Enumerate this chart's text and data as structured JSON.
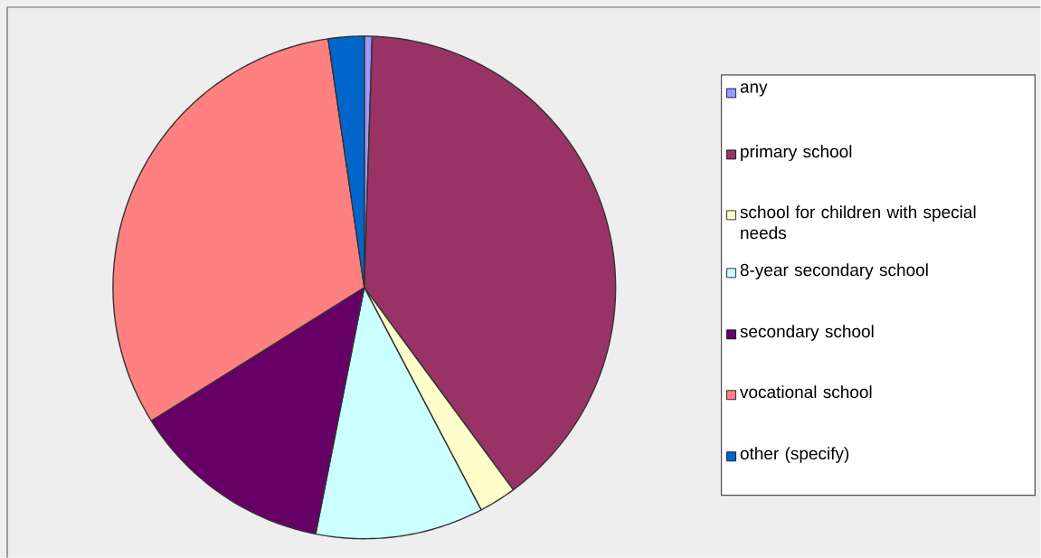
{
  "chart_data": {
    "type": "pie",
    "categories": [
      "any",
      "primary school",
      "school for children with special needs",
      "8-year secondary school",
      "secondary school",
      "vocational school",
      "other (specify)"
    ],
    "values": [
      0.5,
      39.4,
      2.4,
      10.8,
      13.0,
      31.6,
      2.3
    ],
    "colors": [
      "#9999ff",
      "#993366",
      "#ffffcc",
      "#ccffff",
      "#660066",
      "#ff8080",
      "#0066cc"
    ],
    "legend": "right"
  }
}
